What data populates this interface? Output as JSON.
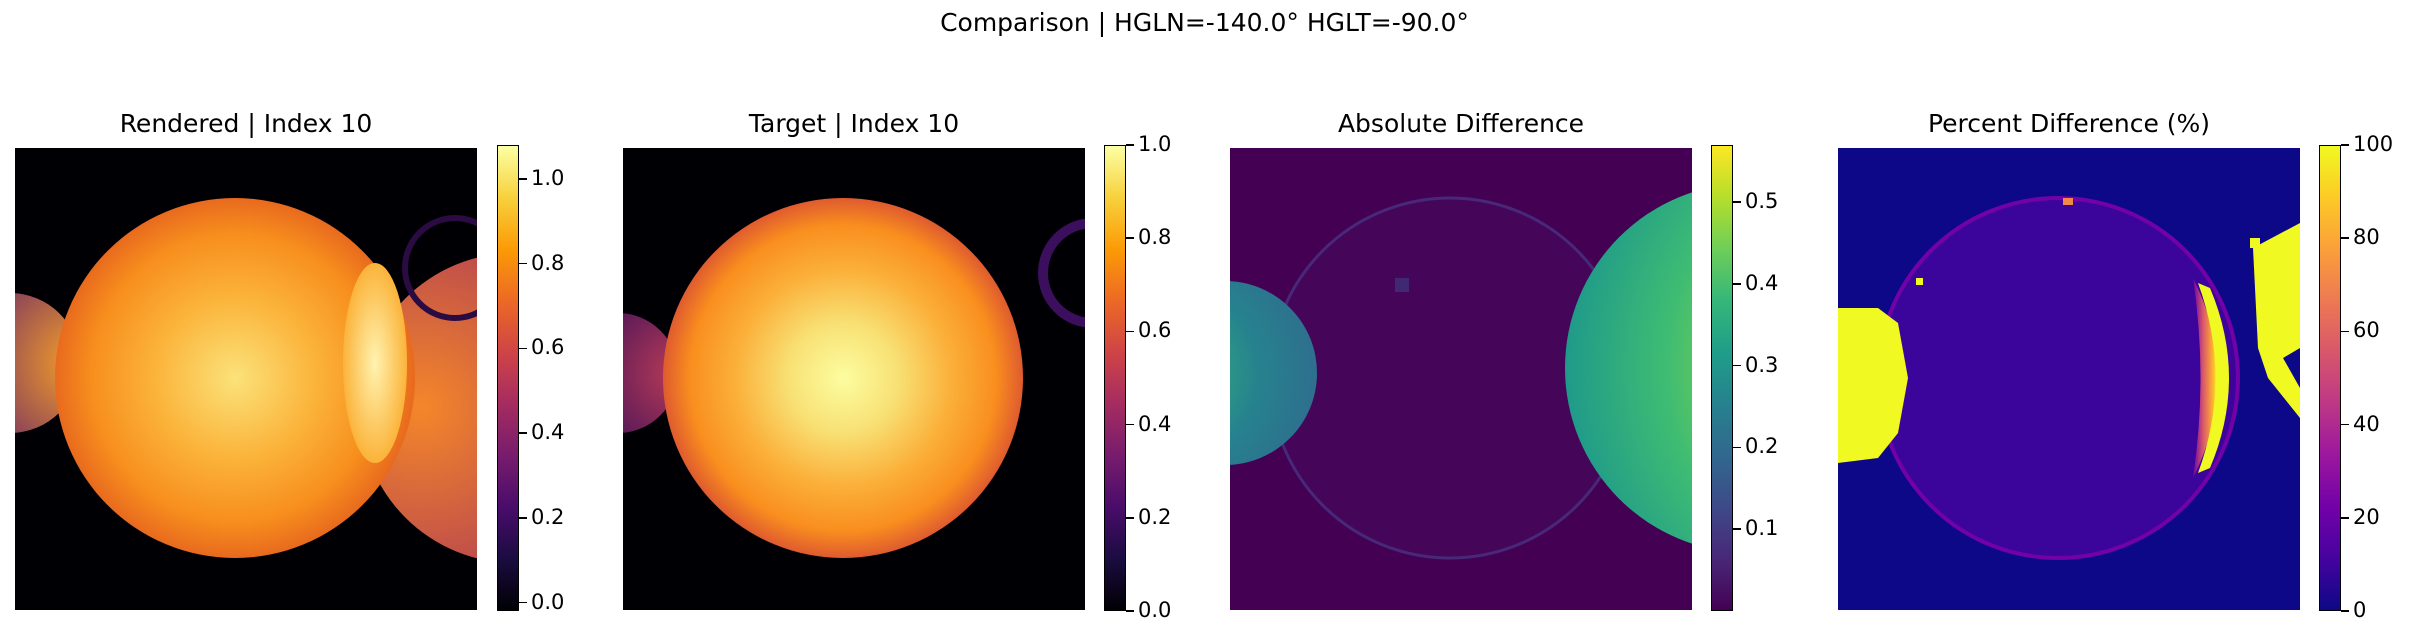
{
  "suptitle": "Comparison | HGLN=-140.0° HGLT=-90.0°",
  "chart_data": [
    {
      "type": "heatmap",
      "title": "Rendered | Index 10",
      "colormap": "inferno",
      "clim": [
        -0.02,
        1.08
      ],
      "colorbar_ticks": [
        "0.0",
        "0.2",
        "0.4",
        "0.6",
        "0.8",
        "1.0"
      ],
      "colorbar_tick_values": [
        0.0,
        0.2,
        0.4,
        0.6,
        0.8,
        1.0
      ],
      "content": "bright central disk peaking ~1.0 with bright crescent on right limb and partial disks at both edges"
    },
    {
      "type": "heatmap",
      "title": "Target | Index 10",
      "colormap": "inferno",
      "clim": [
        0.0,
        1.0
      ],
      "colorbar_ticks": [
        "0.0",
        "0.2",
        "0.4",
        "0.6",
        "0.8",
        "1.0"
      ],
      "colorbar_tick_values": [
        0.0,
        0.2,
        0.4,
        0.6,
        0.8,
        1.0
      ],
      "content": "bright central disk peaking ~1.0, partial disk on left edge, faint ring on right edge"
    },
    {
      "type": "heatmap",
      "title": "Absolute Difference",
      "colormap": "viridis",
      "clim": [
        0.0,
        0.57
      ],
      "colorbar_ticks": [
        "0.1",
        "0.2",
        "0.3",
        "0.4",
        "0.5"
      ],
      "colorbar_tick_values": [
        0.1,
        0.2,
        0.3,
        0.4,
        0.5
      ],
      "content": "near zero in center, high values (~0.3-0.55) at left and right edge disks"
    },
    {
      "type": "heatmap",
      "title": "Percent Difference (%)",
      "colormap": "plasma",
      "clim": [
        0,
        100
      ],
      "colorbar_ticks": [
        "0",
        "20",
        "40",
        "60",
        "80",
        "100"
      ],
      "colorbar_tick_values": [
        0,
        20,
        40,
        60,
        80,
        100
      ],
      "content": "low values in center disk, saturated 100% at left/right edges and crescent on right limb"
    }
  ]
}
